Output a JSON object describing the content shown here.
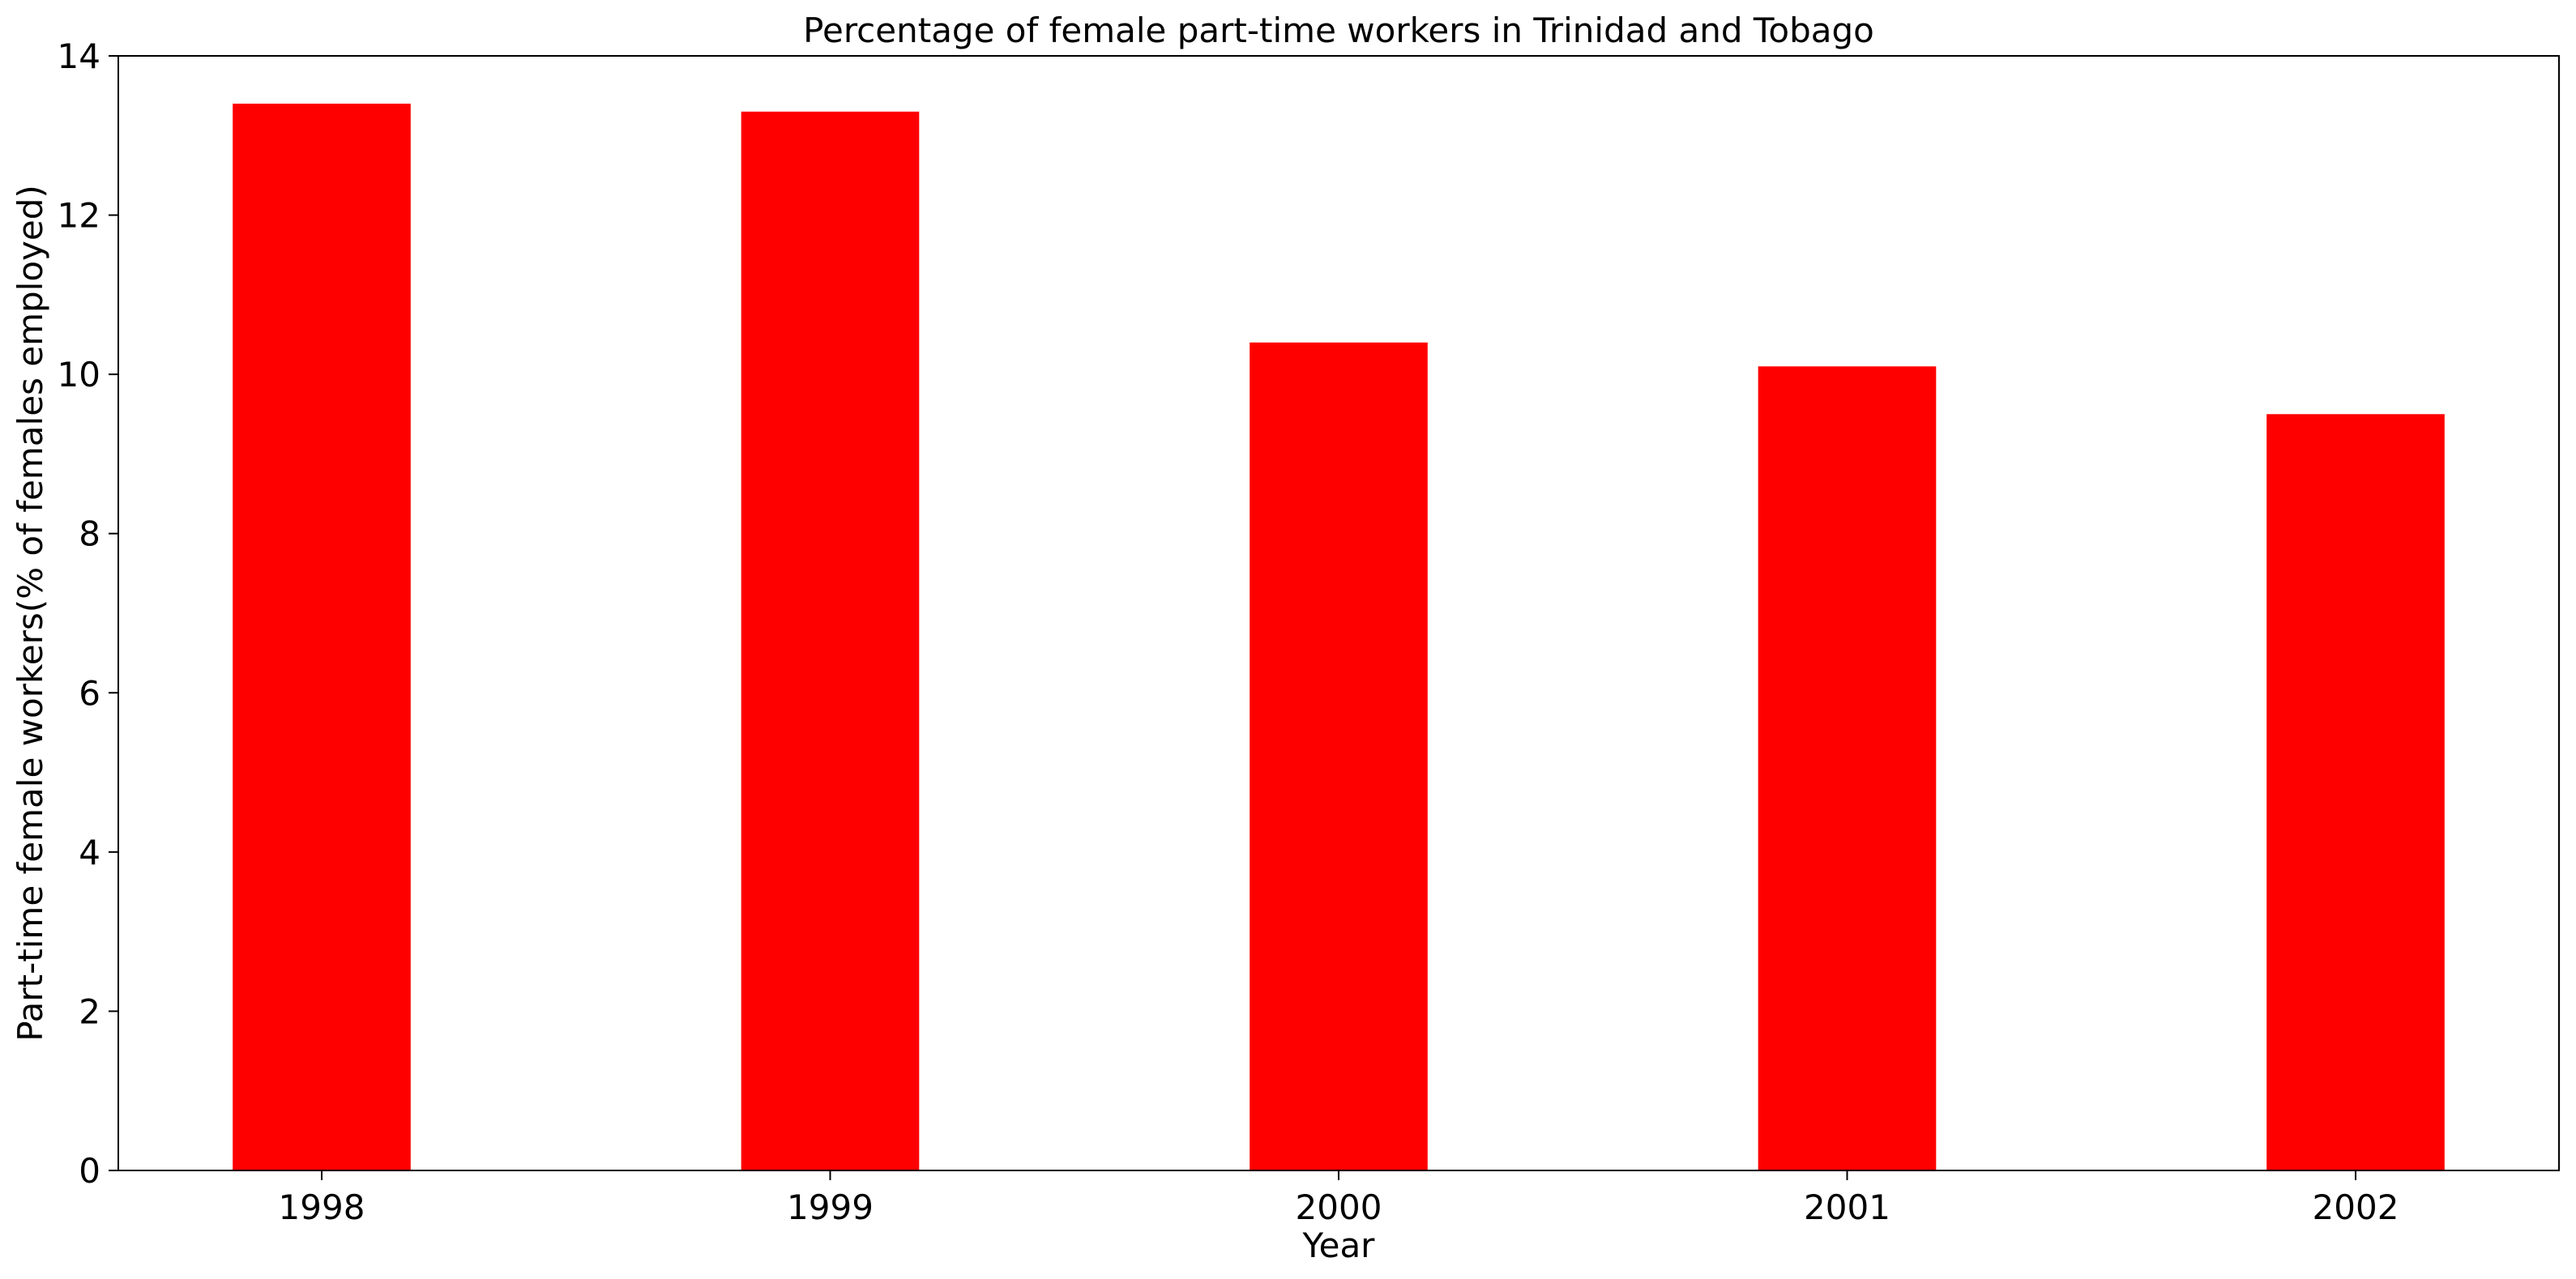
{
  "chart_data": {
    "type": "bar",
    "title": "Percentage of female part-time workers in Trinidad and Tobago",
    "xlabel": "Year",
    "ylabel": "Part-time female workers(% of females employed)",
    "categories": [
      "1998",
      "1999",
      "2000",
      "2001",
      "2002"
    ],
    "values": [
      13.4,
      13.3,
      10.4,
      10.1,
      9.5
    ],
    "ylim": [
      0,
      14
    ],
    "yticks": [
      0,
      2,
      4,
      6,
      8,
      10,
      12,
      14
    ],
    "bar_color": "#ff0000",
    "grid": false,
    "legend": "none"
  }
}
